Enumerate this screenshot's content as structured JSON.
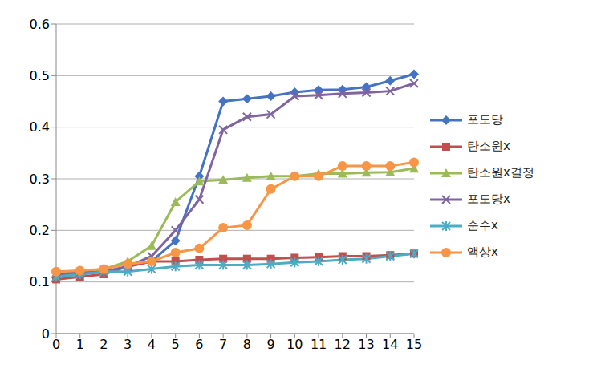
{
  "chart_data": {
    "type": "line",
    "categories": [
      "0",
      "1",
      "2",
      "3",
      "4",
      "5",
      "6",
      "7",
      "8",
      "9",
      "10",
      "11",
      "12",
      "13",
      "14",
      "15"
    ],
    "ylim": [
      0,
      0.6
    ],
    "yticks": [
      0,
      0.1,
      0.2,
      0.3,
      0.4,
      0.5,
      0.6
    ],
    "grid": true,
    "legend": "right",
    "series": [
      {
        "name": "포도당",
        "color": "#4472c4",
        "marker": "diamond",
        "values": [
          0.11,
          0.115,
          0.12,
          0.13,
          0.14,
          0.18,
          0.305,
          0.45,
          0.455,
          0.46,
          0.468,
          0.472,
          0.473,
          0.478,
          0.49,
          0.503
        ]
      },
      {
        "name": "탄소원x",
        "color": "#c0504d",
        "marker": "square",
        "values": [
          0.105,
          0.11,
          0.115,
          0.13,
          0.14,
          0.14,
          0.143,
          0.145,
          0.145,
          0.145,
          0.147,
          0.148,
          0.15,
          0.15,
          0.152,
          0.155
        ]
      },
      {
        "name": "탄소원x결정",
        "color": "#9bbb59",
        "marker": "triangle",
        "values": [
          0.115,
          0.12,
          0.125,
          0.14,
          0.17,
          0.255,
          0.295,
          0.298,
          0.302,
          0.305,
          0.305,
          0.31,
          0.31,
          0.312,
          0.313,
          0.32
        ]
      },
      {
        "name": "포도당x",
        "color": "#8064a2",
        "marker": "x",
        "values": [
          0.115,
          0.118,
          0.12,
          0.13,
          0.15,
          0.2,
          0.26,
          0.395,
          0.42,
          0.425,
          0.46,
          0.462,
          0.465,
          0.467,
          0.47,
          0.485
        ]
      },
      {
        "name": "순수x",
        "color": "#4bacc6",
        "marker": "star",
        "values": [
          0.11,
          0.115,
          0.12,
          0.12,
          0.125,
          0.13,
          0.133,
          0.133,
          0.133,
          0.135,
          0.138,
          0.14,
          0.143,
          0.145,
          0.15,
          0.155
        ]
      },
      {
        "name": "액상x",
        "color": "#f79646",
        "marker": "circle",
        "values": [
          0.12,
          0.122,
          0.125,
          0.135,
          0.14,
          0.157,
          0.165,
          0.205,
          0.21,
          0.28,
          0.305,
          0.305,
          0.325,
          0.325,
          0.325,
          0.332
        ]
      }
    ]
  }
}
